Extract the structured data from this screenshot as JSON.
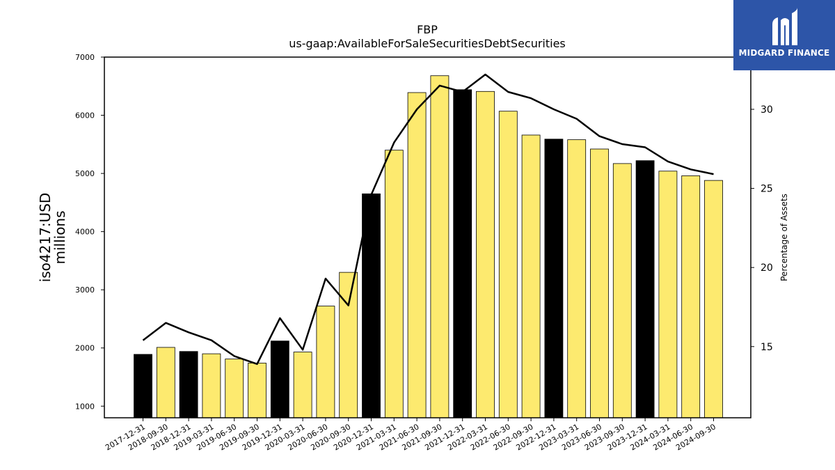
{
  "chart_data": {
    "type": "bar",
    "title": "FBP",
    "subtitle": "us-gaap:AvailableForSaleSecuritiesDebtSecurities",
    "ylabel": "iso4217:USD",
    "ylabel_sub": "millions",
    "y2label": "Percentage of Assets",
    "ylim": [
      800,
      7000
    ],
    "y2lim": [
      10.5,
      33.3
    ],
    "yticks": [
      1000,
      2000,
      3000,
      4000,
      5000,
      6000,
      7000
    ],
    "y2ticks": [
      15,
      20,
      25,
      30
    ],
    "grid": false,
    "categories": [
      "2017-12-31",
      "2018-09-30",
      "2018-12-31",
      "2019-03-31",
      "2019-06-30",
      "2019-09-30",
      "2019-12-31",
      "2020-03-31",
      "2020-06-30",
      "2020-09-30",
      "2020-12-31",
      "2021-03-31",
      "2021-06-30",
      "2021-09-30",
      "2021-12-31",
      "2022-03-31",
      "2022-06-30",
      "2022-09-30",
      "2022-12-31",
      "2023-03-31",
      "2023-06-30",
      "2023-09-30",
      "2023-12-31",
      "2024-03-31",
      "2024-06-30",
      "2024-09-30"
    ],
    "series": [
      {
        "type": "bar",
        "values": [
          1890,
          2010,
          1940,
          1900,
          1810,
          1740,
          2120,
          1930,
          2720,
          3300,
          4650,
          5400,
          6390,
          6680,
          6440,
          6410,
          6070,
          5660,
          5590,
          5580,
          5420,
          5170,
          5220,
          5040,
          4960,
          4880
        ],
        "highlight_indices": [
          0,
          2,
          6,
          10,
          14,
          18,
          22
        ],
        "color": "#fdea6f",
        "highlight_color": "#000000"
      },
      {
        "type": "line",
        "axis": "right",
        "values": [
          15.4,
          16.5,
          15.9,
          15.4,
          14.4,
          13.9,
          16.8,
          14.8,
          19.3,
          17.6,
          24.6,
          27.9,
          30.0,
          31.5,
          31.1,
          32.2,
          31.1,
          30.7,
          30.0,
          29.4,
          28.3,
          27.8,
          27.6,
          26.7,
          26.2,
          25.9
        ],
        "color": "#000000"
      }
    ]
  },
  "logo": {
    "text": "MIDGARD FINANCE",
    "icon": "midgard-logo-icon"
  }
}
